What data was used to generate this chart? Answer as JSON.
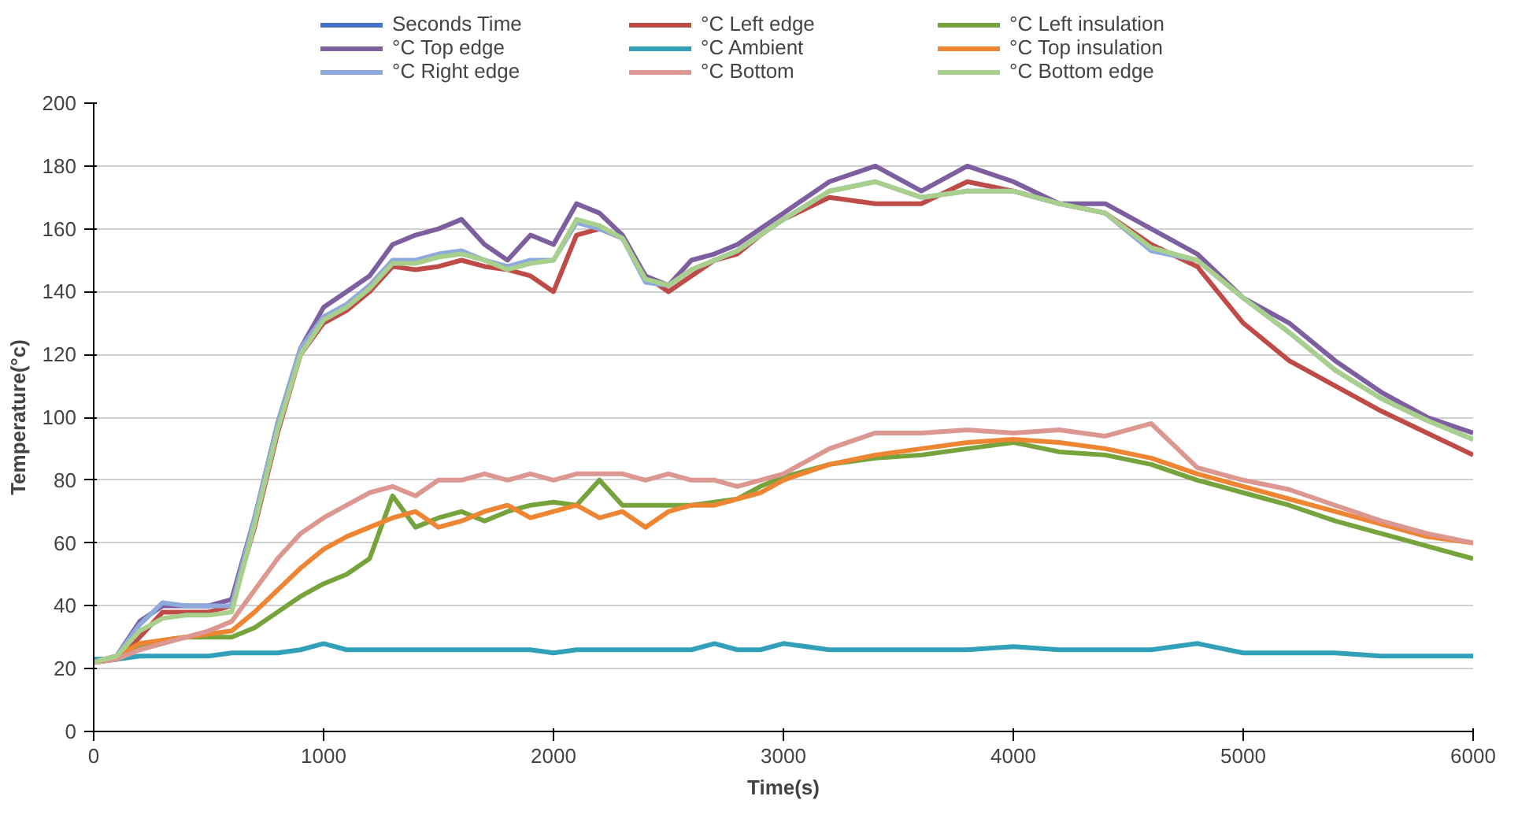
{
  "chart_data": {
    "type": "line",
    "xlabel": "Time(s)",
    "ylabel": "Temperature(°c)",
    "x": [
      0,
      100,
      200,
      300,
      400,
      500,
      600,
      700,
      800,
      900,
      1000,
      1100,
      1200,
      1300,
      1400,
      1500,
      1600,
      1700,
      1800,
      1900,
      2000,
      2100,
      2200,
      2300,
      2400,
      2500,
      2600,
      2700,
      2800,
      2900,
      3000,
      3200,
      3400,
      3600,
      3800,
      4000,
      4200,
      4400,
      4600,
      4800,
      5000,
      5200,
      5400,
      5600,
      5800,
      6000
    ],
    "xlim": [
      0,
      6000
    ],
    "xticks": [
      0,
      1000,
      2000,
      3000,
      4000,
      5000,
      6000
    ],
    "ylim": [
      0,
      200
    ],
    "yticks": [
      0,
      20,
      40,
      60,
      80,
      100,
      120,
      140,
      160,
      180,
      200
    ],
    "grid": "y",
    "legend": "top",
    "marker": "none",
    "line_style": "solid",
    "series": [
      {
        "name": "Seconds Time",
        "color": "#4472c4",
        "values": [
          null,
          null,
          null,
          null,
          null,
          null,
          null,
          null,
          null,
          null,
          null,
          null,
          null,
          null,
          null,
          null,
          null,
          null,
          null,
          null,
          null,
          null,
          null,
          null,
          null,
          null,
          null,
          null,
          null,
          null,
          null,
          null,
          null,
          null,
          null,
          null,
          null,
          null,
          null,
          null,
          null,
          null,
          null,
          null,
          null,
          null
        ]
      },
      {
        "name": "°C Left edge",
        "color": "#be4b48",
        "values": [
          22,
          23,
          30,
          38,
          38,
          38,
          40,
          65,
          95,
          120,
          130,
          134,
          140,
          148,
          147,
          148,
          150,
          148,
          147,
          145,
          140,
          158,
          160,
          157,
          145,
          140,
          145,
          150,
          152,
          158,
          163,
          170,
          168,
          168,
          175,
          172,
          168,
          165,
          155,
          148,
          130,
          118,
          110,
          102,
          95,
          88
        ]
      },
      {
        "name": "°C Left insulation",
        "color": "#77a33d",
        "values": [
          22,
          23,
          27,
          29,
          30,
          30,
          30,
          33,
          38,
          43,
          47,
          50,
          55,
          75,
          65,
          68,
          70,
          67,
          70,
          72,
          73,
          72,
          80,
          72,
          72,
          72,
          72,
          73,
          74,
          78,
          81,
          85,
          87,
          88,
          90,
          92,
          89,
          88,
          85,
          80,
          76,
          72,
          67,
          63,
          59,
          55
        ]
      },
      {
        "name": "°C Top edge",
        "color": "#7d5fa0",
        "values": [
          22,
          24,
          35,
          40,
          40,
          40,
          42,
          68,
          98,
          122,
          135,
          140,
          145,
          155,
          158,
          160,
          163,
          155,
          150,
          158,
          155,
          168,
          165,
          158,
          145,
          142,
          150,
          152,
          155,
          160,
          165,
          175,
          180,
          172,
          180,
          175,
          168,
          168,
          160,
          152,
          138,
          130,
          118,
          108,
          100,
          95
        ]
      },
      {
        "name": "°C Ambient",
        "color": "#31a0b8",
        "values": [
          23,
          23,
          24,
          24,
          24,
          24,
          25,
          25,
          25,
          26,
          28,
          26,
          26,
          26,
          26,
          26,
          26,
          26,
          26,
          26,
          25,
          26,
          26,
          26,
          26,
          26,
          26,
          28,
          26,
          26,
          28,
          26,
          26,
          26,
          26,
          27,
          26,
          26,
          26,
          28,
          25,
          25,
          25,
          24,
          24,
          24
        ]
      },
      {
        "name": "°C Top insulation",
        "color": "#ee8533",
        "values": [
          22,
          24,
          28,
          29,
          30,
          31,
          32,
          38,
          45,
          52,
          58,
          62,
          65,
          68,
          70,
          65,
          67,
          70,
          72,
          68,
          70,
          72,
          68,
          70,
          65,
          70,
          72,
          72,
          74,
          76,
          80,
          85,
          88,
          90,
          92,
          93,
          92,
          90,
          87,
          82,
          78,
          74,
          70,
          66,
          62,
          60
        ]
      },
      {
        "name": "°C Right edge",
        "color": "#8eaadc",
        "values": [
          22,
          24,
          34,
          41,
          40,
          40,
          40,
          68,
          98,
          122,
          132,
          136,
          142,
          150,
          150,
          152,
          153,
          150,
          148,
          150,
          150,
          162,
          160,
          157,
          143,
          142,
          147,
          150,
          153,
          158,
          163,
          172,
          175,
          170,
          172,
          172,
          168,
          165,
          153,
          150,
          138,
          127,
          115,
          106,
          99,
          93
        ]
      },
      {
        "name": "°C Bottom",
        "color": "#dd9791",
        "values": [
          22,
          23,
          26,
          28,
          30,
          32,
          35,
          45,
          55,
          63,
          68,
          72,
          76,
          78,
          75,
          80,
          80,
          82,
          80,
          82,
          80,
          82,
          82,
          82,
          80,
          82,
          80,
          80,
          78,
          80,
          82,
          90,
          95,
          95,
          96,
          95,
          96,
          94,
          98,
          84,
          80,
          77,
          72,
          67,
          63,
          60
        ]
      },
      {
        "name": "°C Bottom edge",
        "color": "#a9cf8c",
        "values": [
          22,
          24,
          32,
          36,
          37,
          37,
          38,
          66,
          96,
          120,
          131,
          135,
          141,
          149,
          149,
          151,
          152,
          150,
          147,
          149,
          150,
          163,
          161,
          157,
          144,
          142,
          147,
          150,
          153,
          158,
          163,
          172,
          175,
          170,
          172,
          172,
          168,
          165,
          154,
          150,
          138,
          127,
          115,
          106,
          99,
          93
        ]
      }
    ]
  }
}
